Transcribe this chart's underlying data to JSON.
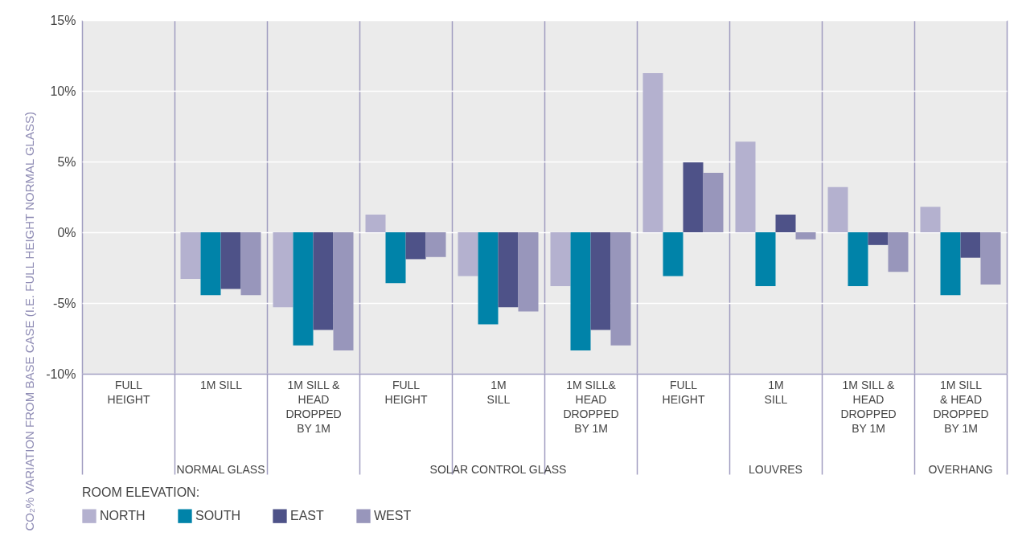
{
  "chart_data": {
    "type": "bar",
    "ylabel": "CO₂% VARIATION FROM BASE CASE (I.E. FULL HEIGHT NORMAL GLASS)",
    "legend_title": "ROOM ELEVATION:",
    "categories": [
      "FULL\nHEIGHT",
      "1M SILL",
      "1M SILL &\nHEAD\nDROPPED\nBY 1M",
      "FULL\nHEIGHT",
      "1M\nSILL",
      "1M SILL&\nHEAD\nDROPPED\nBY 1M",
      "FULL\nHEIGHT",
      "1M\nSILL",
      "1M SILL &\nHEAD\nDROPPED\nBY 1M",
      "1M SILL\n& HEAD\nDROPPED\nBY 1M"
    ],
    "series": [
      {
        "name": "NORTH",
        "color": "#b4b1cf",
        "values": [
          0,
          -3.3,
          -5.3,
          1.25,
          -3.1,
          -3.8,
          11.25,
          6.4,
          3.2,
          1.8
        ]
      },
      {
        "name": "SOUTH",
        "color": "#0083a9",
        "values": [
          0,
          -4.45,
          -8.0,
          -3.6,
          -6.5,
          -8.35,
          -3.1,
          -3.8,
          -3.8,
          -4.45
        ]
      },
      {
        "name": "EAST",
        "color": "#4e5288",
        "values": [
          0,
          -4.0,
          -6.9,
          -1.9,
          -5.3,
          -6.9,
          4.95,
          1.25,
          -0.9,
          -1.8
        ]
      },
      {
        "name": "WEST",
        "color": "#9896bb",
        "values": [
          0,
          -4.45,
          -8.35,
          -1.75,
          -5.6,
          -8.0,
          4.2,
          -0.5,
          -2.8,
          -3.7
        ]
      }
    ],
    "ylim": [
      -10,
      15
    ],
    "yticks": [
      {
        "value": -10,
        "label": "-10%"
      },
      {
        "value": -5,
        "label": "-5%"
      },
      {
        "value": 0,
        "label": "0%"
      },
      {
        "value": 5,
        "label": "5%"
      },
      {
        "value": 10,
        "label": "10%"
      },
      {
        "value": 15,
        "label": "15%"
      }
    ],
    "grid": true,
    "legend": "bottom",
    "annotations": [
      "NORMAL GLASS",
      "SOLAR CONTROL GLASS",
      "LOUVRES",
      "OVERHANG"
    ]
  }
}
